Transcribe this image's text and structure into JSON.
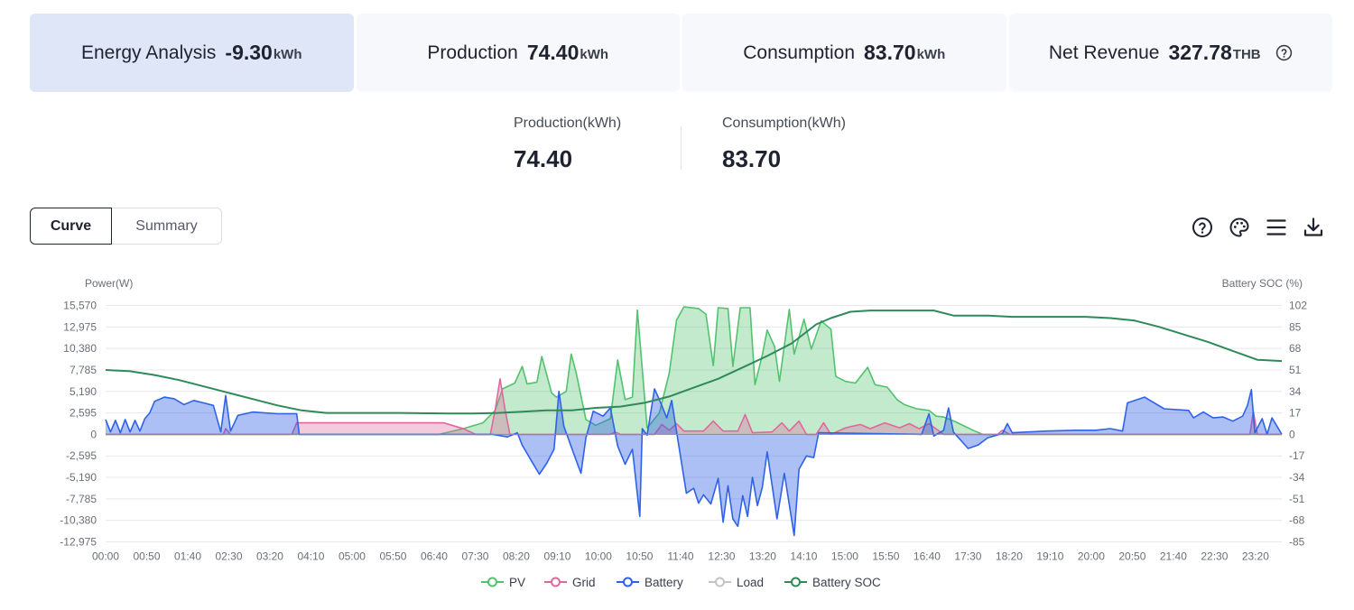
{
  "tabs": [
    {
      "label": "Energy Analysis",
      "value": "-9.30",
      "unit": "kWh",
      "active": true
    },
    {
      "label": "Production",
      "value": "74.40",
      "unit": "kWh"
    },
    {
      "label": "Consumption",
      "value": "83.70",
      "unit": "kWh"
    },
    {
      "label": "Net Revenue",
      "value": "327.78",
      "unit": "THB",
      "help_icon": "help-circle-icon"
    }
  ],
  "stats": {
    "production": {
      "label": "Production(kWh)",
      "value": "74.40"
    },
    "consumption": {
      "label": "Consumption(kWh)",
      "value": "83.70"
    }
  },
  "view_toggle": {
    "curve": "Curve",
    "summary": "Summary",
    "selected": "Curve"
  },
  "toolbar": [
    "help-circle-icon",
    "palette-icon",
    "menu-icon",
    "download-icon"
  ],
  "chart_data": {
    "type": "area",
    "left_axis": {
      "label": "Power(W)",
      "min": -12975,
      "max": 15570,
      "ticks": [
        "15,570",
        "12,975",
        "10,380",
        "7,785",
        "5,190",
        "2,595",
        "0",
        "-2,595",
        "-5,190",
        "-7,785",
        "-10,380",
        "-12,975"
      ]
    },
    "right_axis": {
      "label": "Battery SOC (%)",
      "min": -85,
      "max": 102,
      "ticks": [
        "102",
        "85",
        "68",
        "51",
        "34",
        "17",
        "0",
        "-17",
        "-34",
        "-51",
        "-68",
        "-85"
      ]
    },
    "x_ticks": [
      "00:00",
      "00:50",
      "01:40",
      "02:30",
      "03:20",
      "04:10",
      "05:00",
      "05:50",
      "06:40",
      "07:30",
      "08:20",
      "09:10",
      "10:00",
      "10:50",
      "11:40",
      "12:30",
      "13:20",
      "14:10",
      "15:00",
      "15:50",
      "16:40",
      "17:30",
      "18:20",
      "19:10",
      "20:00",
      "20:50",
      "21:40",
      "22:30",
      "23:20"
    ],
    "grid": true,
    "legend_position": "bottom",
    "series": [
      {
        "name": "PV",
        "color": "#52c26e",
        "axis": "left",
        "filled": true,
        "points": [
          [
            0,
            0
          ],
          [
            6.8,
            0
          ],
          [
            7.3,
            700
          ],
          [
            7.7,
            1400
          ],
          [
            7.95,
            2900
          ],
          [
            8.1,
            5500
          ],
          [
            8.35,
            6200
          ],
          [
            8.5,
            8200
          ],
          [
            8.6,
            6100
          ],
          [
            8.8,
            6300
          ],
          [
            8.9,
            9400
          ],
          [
            9.1,
            5000
          ],
          [
            9.2,
            4500
          ],
          [
            9.4,
            5200
          ],
          [
            9.5,
            9700
          ],
          [
            9.6,
            7500
          ],
          [
            9.8,
            1800
          ],
          [
            10.0,
            1100
          ],
          [
            10.3,
            1900
          ],
          [
            10.45,
            9000
          ],
          [
            10.6,
            4200
          ],
          [
            10.75,
            4500
          ],
          [
            10.85,
            15000
          ],
          [
            11.05,
            800
          ],
          [
            11.3,
            2600
          ],
          [
            11.5,
            7400
          ],
          [
            11.65,
            13800
          ],
          [
            11.8,
            15400
          ],
          [
            12.1,
            15200
          ],
          [
            12.25,
            14500
          ],
          [
            12.4,
            8300
          ],
          [
            12.5,
            15300
          ],
          [
            12.7,
            15200
          ],
          [
            12.8,
            8200
          ],
          [
            12.95,
            15300
          ],
          [
            13.15,
            15300
          ],
          [
            13.25,
            6000
          ],
          [
            13.4,
            9600
          ],
          [
            13.5,
            12600
          ],
          [
            13.65,
            10600
          ],
          [
            13.75,
            6400
          ],
          [
            13.95,
            15100
          ],
          [
            14.05,
            9700
          ],
          [
            14.25,
            13900
          ],
          [
            14.4,
            10300
          ],
          [
            14.6,
            13700
          ],
          [
            14.8,
            12700
          ],
          [
            14.9,
            7000
          ],
          [
            15.1,
            6400
          ],
          [
            15.3,
            6200
          ],
          [
            15.55,
            8100
          ],
          [
            15.7,
            6000
          ],
          [
            15.95,
            5700
          ],
          [
            16.15,
            4200
          ],
          [
            16.3,
            3600
          ],
          [
            16.55,
            3100
          ],
          [
            16.8,
            2900
          ],
          [
            16.95,
            2200
          ],
          [
            17.1,
            2100
          ],
          [
            17.35,
            1500
          ],
          [
            17.7,
            500
          ],
          [
            17.9,
            0
          ],
          [
            24,
            0
          ]
        ]
      },
      {
        "name": "Grid",
        "color": "#e0679e",
        "axis": "left",
        "filled": true,
        "points": [
          [
            0,
            0
          ],
          [
            2.4,
            0
          ],
          [
            2.45,
            700
          ],
          [
            2.55,
            0
          ],
          [
            3.8,
            0
          ],
          [
            3.9,
            1400
          ],
          [
            6.9,
            1400
          ],
          [
            7.3,
            700
          ],
          [
            7.55,
            0
          ],
          [
            7.85,
            0
          ],
          [
            7.95,
            3000
          ],
          [
            8.05,
            6700
          ],
          [
            8.15,
            3000
          ],
          [
            8.25,
            0
          ],
          [
            10.3,
            0
          ],
          [
            10.4,
            300
          ],
          [
            10.5,
            0
          ],
          [
            11.2,
            0
          ],
          [
            11.35,
            1200
          ],
          [
            11.5,
            500
          ],
          [
            11.65,
            1300
          ],
          [
            11.8,
            400
          ],
          [
            12.2,
            400
          ],
          [
            12.4,
            1600
          ],
          [
            12.6,
            400
          ],
          [
            12.9,
            400
          ],
          [
            13.05,
            2400
          ],
          [
            13.2,
            200
          ],
          [
            13.6,
            300
          ],
          [
            13.8,
            1400
          ],
          [
            13.95,
            400
          ],
          [
            14.15,
            1600
          ],
          [
            14.3,
            0
          ],
          [
            14.5,
            0
          ],
          [
            14.65,
            1400
          ],
          [
            14.8,
            0
          ],
          [
            15.1,
            800
          ],
          [
            15.4,
            1200
          ],
          [
            15.6,
            700
          ],
          [
            15.9,
            1400
          ],
          [
            16.2,
            800
          ],
          [
            16.4,
            1300
          ],
          [
            16.6,
            700
          ],
          [
            16.8,
            1300
          ],
          [
            17.1,
            0
          ],
          [
            18.2,
            0
          ],
          [
            18.3,
            500
          ],
          [
            18.45,
            0
          ],
          [
            23.35,
            0
          ],
          [
            23.42,
            2800
          ],
          [
            23.5,
            0
          ],
          [
            24,
            0
          ]
        ]
      },
      {
        "name": "Battery",
        "color": "#2f62e6",
        "axis": "left",
        "filled": true,
        "points": [
          [
            0,
            1800
          ],
          [
            0.1,
            300
          ],
          [
            0.2,
            1700
          ],
          [
            0.3,
            200
          ],
          [
            0.4,
            1800
          ],
          [
            0.5,
            300
          ],
          [
            0.6,
            1700
          ],
          [
            0.7,
            400
          ],
          [
            0.8,
            1900
          ],
          [
            0.9,
            2600
          ],
          [
            1.0,
            4000
          ],
          [
            1.2,
            4500
          ],
          [
            1.4,
            4300
          ],
          [
            1.6,
            3600
          ],
          [
            1.8,
            4100
          ],
          [
            2.0,
            3800
          ],
          [
            2.2,
            3500
          ],
          [
            2.35,
            300
          ],
          [
            2.45,
            4700
          ],
          [
            2.55,
            400
          ],
          [
            2.7,
            2300
          ],
          [
            3.0,
            2700
          ],
          [
            3.5,
            2500
          ],
          [
            3.9,
            2500
          ],
          [
            3.95,
            0
          ],
          [
            7.9,
            0
          ],
          [
            8.0,
            -100
          ],
          [
            8.2,
            -300
          ],
          [
            8.4,
            200
          ],
          [
            8.5,
            -1300
          ],
          [
            8.7,
            -3300
          ],
          [
            8.85,
            -4800
          ],
          [
            9.0,
            -3500
          ],
          [
            9.15,
            -1800
          ],
          [
            9.25,
            5200
          ],
          [
            9.35,
            1000
          ],
          [
            9.55,
            -2300
          ],
          [
            9.7,
            -4700
          ],
          [
            9.8,
            -400
          ],
          [
            9.95,
            2800
          ],
          [
            10.15,
            2200
          ],
          [
            10.3,
            3200
          ],
          [
            10.45,
            -1400
          ],
          [
            10.6,
            -3600
          ],
          [
            10.75,
            -1800
          ],
          [
            10.9,
            -9900
          ],
          [
            10.95,
            700
          ],
          [
            11.05,
            -100
          ],
          [
            11.2,
            5500
          ],
          [
            11.3,
            4200
          ],
          [
            11.45,
            2000
          ],
          [
            11.55,
            4100
          ],
          [
            11.7,
            -1500
          ],
          [
            11.85,
            -7100
          ],
          [
            12.0,
            -6500
          ],
          [
            12.1,
            -8300
          ],
          [
            12.2,
            -7300
          ],
          [
            12.35,
            -8400
          ],
          [
            12.5,
            -5300
          ],
          [
            12.6,
            -10600
          ],
          [
            12.7,
            -6200
          ],
          [
            12.8,
            -10200
          ],
          [
            12.9,
            -11100
          ],
          [
            13.0,
            -7400
          ],
          [
            13.1,
            -9900
          ],
          [
            13.2,
            -5200
          ],
          [
            13.3,
            -8600
          ],
          [
            13.4,
            -6400
          ],
          [
            13.5,
            -2100
          ],
          [
            13.7,
            -10200
          ],
          [
            13.85,
            -4700
          ],
          [
            14.05,
            -12200
          ],
          [
            14.15,
            -4200
          ],
          [
            14.3,
            -2600
          ],
          [
            14.45,
            -2800
          ],
          [
            14.55,
            200
          ],
          [
            16.65,
            0
          ],
          [
            16.8,
            2500
          ],
          [
            16.9,
            -200
          ],
          [
            17.1,
            500
          ],
          [
            17.2,
            3200
          ],
          [
            17.3,
            300
          ],
          [
            17.6,
            -1700
          ],
          [
            17.8,
            -1300
          ],
          [
            18.0,
            -400
          ],
          [
            18.3,
            100
          ],
          [
            18.4,
            1300
          ],
          [
            18.5,
            200
          ],
          [
            19.2,
            400
          ],
          [
            19.8,
            500
          ],
          [
            20.2,
            500
          ],
          [
            20.5,
            700
          ],
          [
            20.75,
            400
          ],
          [
            20.85,
            3800
          ],
          [
            21.2,
            4500
          ],
          [
            21.6,
            3100
          ],
          [
            22.1,
            2900
          ],
          [
            22.2,
            2000
          ],
          [
            22.4,
            2700
          ],
          [
            22.6,
            2000
          ],
          [
            22.8,
            2100
          ],
          [
            23.0,
            1600
          ],
          [
            23.2,
            2200
          ],
          [
            23.3,
            3500
          ],
          [
            23.38,
            5400
          ],
          [
            23.45,
            200
          ],
          [
            23.6,
            1900
          ],
          [
            23.7,
            0
          ],
          [
            23.8,
            2000
          ],
          [
            23.9,
            1000
          ],
          [
            24,
            0
          ]
        ]
      },
      {
        "name": "Load",
        "color": "#c4c4c4",
        "axis": "left",
        "filled": false,
        "hidden": true,
        "points": []
      },
      {
        "name": "Battery SOC",
        "color": "#2f8a5a",
        "axis": "right",
        "filled": false,
        "points": [
          [
            0,
            51
          ],
          [
            0.5,
            50
          ],
          [
            1.0,
            47
          ],
          [
            1.5,
            43
          ],
          [
            2.0,
            38
          ],
          [
            2.5,
            33
          ],
          [
            3.0,
            28
          ],
          [
            3.5,
            23
          ],
          [
            4.0,
            19
          ],
          [
            4.5,
            17
          ],
          [
            5.0,
            17
          ],
          [
            6.0,
            17
          ],
          [
            7.0,
            16.5
          ],
          [
            7.5,
            16.5
          ],
          [
            8.0,
            17
          ],
          [
            8.5,
            18
          ],
          [
            9.0,
            19
          ],
          [
            9.5,
            19
          ],
          [
            10.0,
            21
          ],
          [
            10.5,
            22
          ],
          [
            11.0,
            25
          ],
          [
            11.5,
            30
          ],
          [
            12.0,
            37
          ],
          [
            12.5,
            44
          ],
          [
            13.0,
            53
          ],
          [
            13.5,
            62
          ],
          [
            14.0,
            72
          ],
          [
            14.5,
            87
          ],
          [
            14.8,
            92
          ],
          [
            15.2,
            97
          ],
          [
            15.6,
            98
          ],
          [
            16.0,
            98
          ],
          [
            16.5,
            98
          ],
          [
            16.9,
            98
          ],
          [
            17.3,
            94
          ],
          [
            18.0,
            94
          ],
          [
            18.5,
            93
          ],
          [
            19.5,
            93
          ],
          [
            20.0,
            93
          ],
          [
            20.5,
            92
          ],
          [
            21.0,
            90
          ],
          [
            21.5,
            85
          ],
          [
            22.0,
            79
          ],
          [
            22.5,
            73
          ],
          [
            23.0,
            66
          ],
          [
            23.5,
            59
          ],
          [
            24,
            58
          ]
        ]
      }
    ]
  }
}
